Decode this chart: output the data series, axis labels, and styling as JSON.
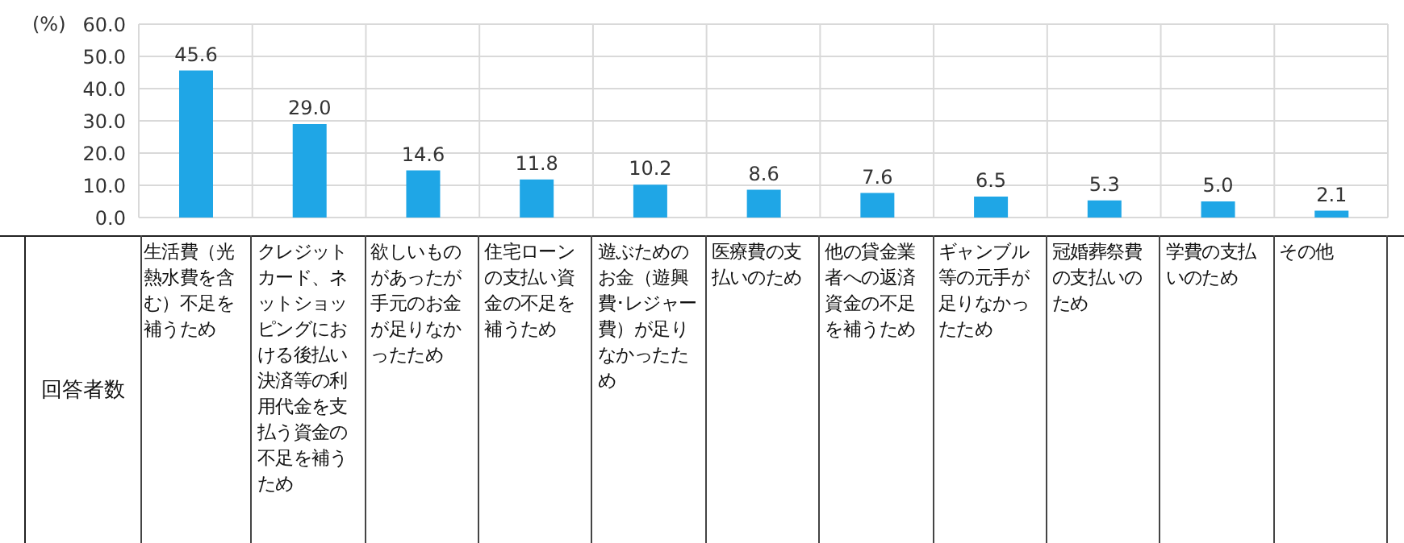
{
  "chart_data": {
    "type": "bar",
    "ylabel": "(%)",
    "annotations": [
      "回答者数"
    ],
    "categories": [
      "生活費（光熱水費を含む）不足を補うため",
      "クレジットカード、ネットショッピングにおける後払い決済等の利用代金を支払う資金の不足を補うため",
      "欲しいものがあったが手元のお金が足りなかったため",
      "住宅ローンの支払い資金の不足を補うため",
      "遊ぶためのお金（遊興費･レジャー費）が足りなかったため",
      "医療費の支払いのため",
      "他の貸金業者への返済資金の不足を補うため",
      "ギャンブル等の元手が足りなかったため",
      "冠婚葬祭費の支払いのため",
      "学費の支払いのため",
      "その他"
    ],
    "values": [
      45.6,
      29.0,
      14.6,
      11.8,
      10.2,
      8.6,
      7.6,
      6.5,
      5.3,
      5.0,
      2.1
    ],
    "value_labels": [
      "45.6",
      "29.0",
      "14.6",
      "11.8",
      "10.2",
      "8.6",
      "7.6",
      "6.5",
      "5.3",
      "5.0",
      "2.1"
    ],
    "color": "#1fa6e6",
    "ylim": [
      0,
      60
    ],
    "yticks": [
      {
        "value": 0,
        "label": "0.0"
      },
      {
        "value": 10,
        "label": "10.0"
      },
      {
        "value": 20,
        "label": "20.0"
      },
      {
        "value": 30,
        "label": "30.0"
      },
      {
        "value": 40,
        "label": "40.0"
      },
      {
        "value": 50,
        "label": "50.0"
      },
      {
        "value": 60,
        "label": "60.0"
      }
    ],
    "grid": true
  }
}
